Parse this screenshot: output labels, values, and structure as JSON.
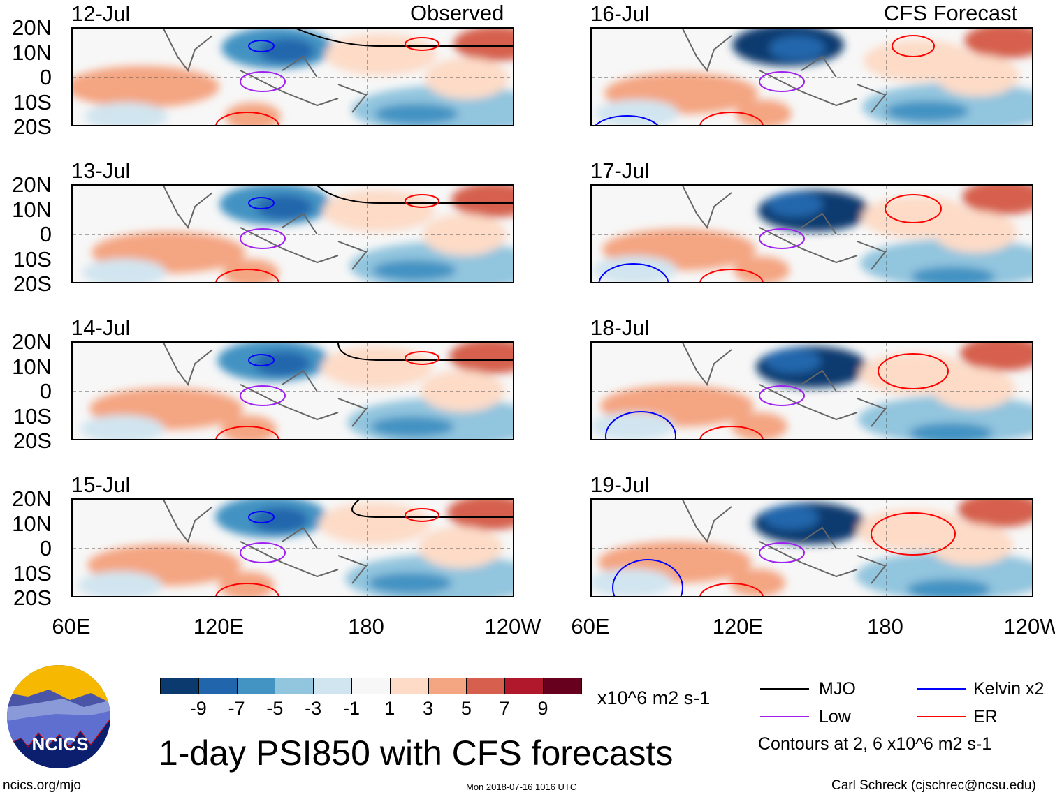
{
  "chart_data": {
    "type": "heatmap",
    "title": "1-day PSI850 with CFS forecasts",
    "units": "x10^6 m2 s-1",
    "left_column_label": "Observed",
    "right_column_label": "CFS Forecast",
    "panels": [
      {
        "date": "12-Jul",
        "column": "Observed"
      },
      {
        "date": "13-Jul",
        "column": "Observed"
      },
      {
        "date": "14-Jul",
        "column": "Observed"
      },
      {
        "date": "15-Jul",
        "column": "Observed"
      },
      {
        "date": "16-Jul",
        "column": "CFS Forecast"
      },
      {
        "date": "17-Jul",
        "column": "CFS Forecast"
      },
      {
        "date": "18-Jul",
        "column": "CFS Forecast"
      },
      {
        "date": "19-Jul",
        "column": "CFS Forecast"
      }
    ],
    "y_ticks": [
      "20N",
      "10N",
      "0",
      "10S",
      "20S"
    ],
    "x_ticks": [
      "60E",
      "120E",
      "180",
      "120W"
    ],
    "colorbar": {
      "levels": [
        "-9",
        "-7",
        "-5",
        "-3",
        "-1",
        "1",
        "3",
        "5",
        "7",
        "9"
      ],
      "colors": [
        "#0b3a6f",
        "#2166ac",
        "#4393c3",
        "#92c5de",
        "#d1e5f0",
        "#f7f7f7",
        "#fddbc7",
        "#f4a582",
        "#d6604d",
        "#b2182b",
        "#67001f"
      ]
    },
    "legend": [
      {
        "label": "MJO",
        "color": "#000000"
      },
      {
        "label": "Kelvin x2",
        "color": "#0000ff"
      },
      {
        "label": "Low",
        "color": "#a020f0"
      },
      {
        "label": "ER",
        "color": "#ff0000"
      }
    ],
    "contour_note": "Contours at 2, 6 x10^6 m2 s-1"
  },
  "footer": {
    "url": "ncics.org/mjo",
    "timestamp": "Mon 2018-07-16 1016 UTC",
    "author": "Carl Schreck (cjschrec@ncsu.edu)",
    "logo_text": "NCICS"
  }
}
